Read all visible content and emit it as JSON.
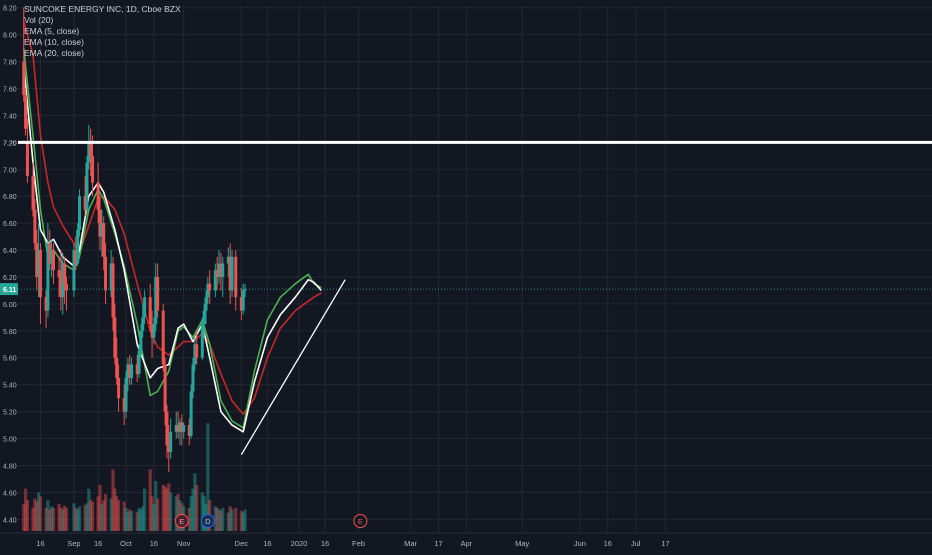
{
  "legend": {
    "title": "SUNCOKE ENERGY INC, 1D, Cboe BZX",
    "indicators": [
      "Vol (20)",
      "EMA (5, close)",
      "EMA (10, close)",
      "EMA (20, close)"
    ]
  },
  "colors": {
    "background": "#131722",
    "grid": "#232733",
    "up_candle": "#26a69a",
    "down_candle": "#ef5350",
    "ema5": "#ffffff",
    "ema10": "#4caf50",
    "ema20": "#c62828",
    "price_line": "#26a69a",
    "horizontal_line": "#ffffff",
    "trend_line": "#ffffff"
  },
  "chart_data": {
    "type": "candlestick",
    "symbol": "SUNCOKE ENERGY INC",
    "interval": "1D",
    "exchange": "Cboe BZX",
    "y_axis_ticks": [
      "8.20",
      "8.00",
      "7.80",
      "7.60",
      "7.40",
      "7.20",
      "7.00",
      "6.80",
      "6.60",
      "6.40",
      "6.20",
      "6.00",
      "5.80",
      "5.60",
      "5.40",
      "5.20",
      "5.00",
      "4.80",
      "4.60",
      "4.40"
    ],
    "ylim": [
      4.38,
      8.22
    ],
    "x_axis_ticks": [
      "16",
      "Sep",
      "16",
      "Oct",
      "16",
      "Nov",
      "Dec",
      "16",
      "2020",
      "16",
      "Feb",
      "Mar",
      "17",
      "Apr",
      "May",
      "Jun",
      "16",
      "Jul",
      "17"
    ],
    "current_price": "6.11",
    "horizontal_line_price": "7.20",
    "horizontal_line_label": "7.20",
    "trend_line": [
      {
        "date": "2019-12-02",
        "price": 4.88
      },
      {
        "date": "2020-01-15",
        "price": 6.18
      }
    ],
    "event_markers": [
      {
        "label": "E",
        "style": "earnings",
        "date": "2019-10-31"
      },
      {
        "label": "D",
        "style": "dividend",
        "date": "2019-11-14"
      },
      {
        "label": "E",
        "style": "earnings-upcoming",
        "date": "2020-02-04"
      }
    ],
    "ema5_approx": [
      [
        "2019-08-07",
        7.78
      ],
      [
        "2019-08-12",
        7.05
      ],
      [
        "2019-08-16",
        6.55
      ],
      [
        "2019-08-20",
        6.45
      ],
      [
        "2019-08-23",
        6.48
      ],
      [
        "2019-08-28",
        6.35
      ],
      [
        "2019-09-03",
        6.28
      ],
      [
        "2019-09-06",
        6.4
      ],
      [
        "2019-09-11",
        6.8
      ],
      [
        "2019-09-16",
        6.9
      ],
      [
        "2019-09-19",
        6.83
      ],
      [
        "2019-09-25",
        6.55
      ],
      [
        "2019-09-30",
        6.25
      ],
      [
        "2019-10-07",
        5.7
      ],
      [
        "2019-10-14",
        5.45
      ],
      [
        "2019-10-18",
        5.52
      ],
      [
        "2019-10-24",
        5.55
      ],
      [
        "2019-10-29",
        5.82
      ],
      [
        "2019-11-01",
        5.85
      ],
      [
        "2019-11-06",
        5.72
      ],
      [
        "2019-11-11",
        5.85
      ],
      [
        "2019-11-15",
        5.6
      ],
      [
        "2019-11-21",
        5.2
      ],
      [
        "2019-11-27",
        5.1
      ],
      [
        "2019-12-03",
        5.05
      ],
      [
        "2019-12-09",
        5.42
      ],
      [
        "2019-12-16",
        5.75
      ],
      [
        "2019-12-23",
        5.92
      ],
      [
        "2019-12-31",
        6.05
      ],
      [
        "2020-01-07",
        6.18
      ],
      [
        "2020-01-10",
        6.16
      ],
      [
        "2020-01-14",
        6.1
      ]
    ],
    "ema10_approx": [
      [
        "2019-08-07",
        7.9
      ],
      [
        "2019-08-12",
        7.25
      ],
      [
        "2019-08-16",
        6.7
      ],
      [
        "2019-08-20",
        6.35
      ],
      [
        "2019-08-23",
        6.4
      ],
      [
        "2019-08-28",
        6.3
      ],
      [
        "2019-09-03",
        6.25
      ],
      [
        "2019-09-06",
        6.35
      ],
      [
        "2019-09-11",
        6.7
      ],
      [
        "2019-09-16",
        6.85
      ],
      [
        "2019-09-19",
        6.78
      ],
      [
        "2019-09-25",
        6.52
      ],
      [
        "2019-09-30",
        6.28
      ],
      [
        "2019-10-07",
        5.85
      ],
      [
        "2019-10-14",
        5.32
      ],
      [
        "2019-10-18",
        5.35
      ],
      [
        "2019-10-24",
        5.5
      ],
      [
        "2019-10-29",
        5.8
      ],
      [
        "2019-11-01",
        5.83
      ],
      [
        "2019-11-06",
        5.75
      ],
      [
        "2019-11-11",
        5.88
      ],
      [
        "2019-11-15",
        5.7
      ],
      [
        "2019-11-21",
        5.28
      ],
      [
        "2019-11-27",
        5.13
      ],
      [
        "2019-12-03",
        5.08
      ],
      [
        "2019-12-09",
        5.5
      ],
      [
        "2019-12-16",
        5.88
      ],
      [
        "2019-12-23",
        6.05
      ],
      [
        "2019-12-31",
        6.15
      ],
      [
        "2020-01-07",
        6.22
      ],
      [
        "2020-01-10",
        6.15
      ],
      [
        "2020-01-14",
        6.12
      ]
    ],
    "ema20_approx": [
      [
        "2019-08-07",
        8.1
      ],
      [
        "2019-08-12",
        7.85
      ],
      [
        "2019-08-16",
        7.25
      ],
      [
        "2019-08-20",
        6.9
      ],
      [
        "2019-08-23",
        6.72
      ],
      [
        "2019-08-28",
        6.58
      ],
      [
        "2019-09-03",
        6.45
      ],
      [
        "2019-09-06",
        6.38
      ],
      [
        "2019-09-11",
        6.58
      ],
      [
        "2019-09-16",
        6.78
      ],
      [
        "2019-09-19",
        6.8
      ],
      [
        "2019-09-25",
        6.7
      ],
      [
        "2019-09-30",
        6.52
      ],
      [
        "2019-10-07",
        6.15
      ],
      [
        "2019-10-14",
        5.8
      ],
      [
        "2019-10-18",
        5.68
      ],
      [
        "2019-10-24",
        5.62
      ],
      [
        "2019-10-29",
        5.68
      ],
      [
        "2019-11-01",
        5.72
      ],
      [
        "2019-11-06",
        5.72
      ],
      [
        "2019-11-11",
        5.78
      ],
      [
        "2019-11-15",
        5.7
      ],
      [
        "2019-11-21",
        5.48
      ],
      [
        "2019-11-27",
        5.28
      ],
      [
        "2019-12-03",
        5.18
      ],
      [
        "2019-12-09",
        5.3
      ],
      [
        "2019-12-16",
        5.6
      ],
      [
        "2019-12-23",
        5.82
      ],
      [
        "2019-12-31",
        5.95
      ],
      [
        "2020-01-07",
        6.02
      ],
      [
        "2020-01-10",
        6.05
      ],
      [
        "2020-01-14",
        6.08
      ]
    ],
    "candles_approx": [
      {
        "o": 7.8,
        "h": 8.2,
        "c": 7.55,
        "l": 7.5
      },
      {
        "o": 7.55,
        "h": 7.6,
        "c": 7.3,
        "l": 7.25
      },
      {
        "o": 7.2,
        "h": 7.38,
        "c": 6.95,
        "l": 6.9
      },
      {
        "o": 6.95,
        "h": 7.05,
        "c": 6.7,
        "l": 6.65
      },
      {
        "o": 6.7,
        "h": 6.78,
        "c": 6.45,
        "l": 6.4
      },
      {
        "o": 6.45,
        "h": 6.55,
        "c": 6.2,
        "l": 6.1
      },
      {
        "o": 6.2,
        "h": 6.6,
        "c": 6.4,
        "l": 6.05
      },
      {
        "o": 6.4,
        "h": 6.45,
        "c": 6.05,
        "l": 5.85
      },
      {
        "o": 6.05,
        "h": 6.1,
        "c": 5.95,
        "l": 5.82
      },
      {
        "o": 5.95,
        "h": 6.6,
        "c": 6.45,
        "l": 5.9
      },
      {
        "o": 6.45,
        "h": 6.55,
        "c": 6.3,
        "l": 6.25
      },
      {
        "o": 6.3,
        "h": 6.48,
        "c": 6.4,
        "l": 6.2
      },
      {
        "o": 6.4,
        "h": 6.45,
        "c": 6.25,
        "l": 6.15
      },
      {
        "o": 6.25,
        "h": 6.35,
        "c": 6.2,
        "l": 6.05
      },
      {
        "o": 6.2,
        "h": 6.4,
        "c": 6.05,
        "l": 5.95
      },
      {
        "o": 6.05,
        "h": 6.38,
        "c": 6.3,
        "l": 5.92
      },
      {
        "o": 6.3,
        "h": 6.35,
        "c": 6.15,
        "l": 6.0
      },
      {
        "o": 6.15,
        "h": 6.2,
        "c": 6.1,
        "l": 5.95
      },
      {
        "o": 6.1,
        "h": 6.45,
        "c": 6.4,
        "l": 6.05
      },
      {
        "o": 6.4,
        "h": 6.5,
        "c": 6.3,
        "l": 6.25
      },
      {
        "o": 6.3,
        "h": 6.6,
        "c": 6.55,
        "l": 6.28
      },
      {
        "o": 6.55,
        "h": 6.85,
        "c": 6.8,
        "l": 6.5
      },
      {
        "o": 6.8,
        "h": 6.95,
        "c": 6.7,
        "l": 6.65
      },
      {
        "o": 6.7,
        "h": 7.1,
        "c": 7.05,
        "l": 6.68
      },
      {
        "o": 7.05,
        "h": 7.33,
        "c": 7.2,
        "l": 7.0
      },
      {
        "o": 7.2,
        "h": 7.3,
        "c": 7.1,
        "l": 6.95
      },
      {
        "o": 7.1,
        "h": 7.25,
        "c": 6.9,
        "l": 6.8
      },
      {
        "o": 6.9,
        "h": 7.05,
        "c": 6.7,
        "l": 6.6
      },
      {
        "o": 6.7,
        "h": 6.8,
        "c": 6.5,
        "l": 6.4
      },
      {
        "o": 6.5,
        "h": 6.7,
        "c": 6.6,
        "l": 6.35
      },
      {
        "o": 6.6,
        "h": 6.65,
        "c": 6.35,
        "l": 6.25
      },
      {
        "o": 6.35,
        "h": 6.45,
        "c": 6.1,
        "l": 6.0
      },
      {
        "o": 6.1,
        "h": 6.4,
        "c": 6.3,
        "l": 6.05
      },
      {
        "o": 6.3,
        "h": 6.35,
        "c": 5.9,
        "l": 5.8
      },
      {
        "o": 5.9,
        "h": 6.0,
        "c": 5.6,
        "l": 5.55
      },
      {
        "o": 5.6,
        "h": 5.75,
        "c": 5.45,
        "l": 5.4
      },
      {
        "o": 5.45,
        "h": 5.55,
        "c": 5.3,
        "l": 5.2
      },
      {
        "o": 5.3,
        "h": 5.4,
        "c": 5.2,
        "l": 5.1
      },
      {
        "o": 5.2,
        "h": 5.5,
        "c": 5.45,
        "l": 5.15
      },
      {
        "o": 5.45,
        "h": 5.6,
        "c": 5.55,
        "l": 5.35
      },
      {
        "o": 5.55,
        "h": 5.62,
        "c": 5.45,
        "l": 5.4
      },
      {
        "o": 5.45,
        "h": 5.6,
        "c": 5.55,
        "l": 5.4
      },
      {
        "o": 5.55,
        "h": 5.62,
        "c": 5.48,
        "l": 5.42
      },
      {
        "o": 5.48,
        "h": 5.7,
        "c": 5.65,
        "l": 5.45
      },
      {
        "o": 5.65,
        "h": 5.85,
        "c": 5.8,
        "l": 5.6
      },
      {
        "o": 5.8,
        "h": 6.0,
        "c": 5.9,
        "l": 5.75
      },
      {
        "o": 5.9,
        "h": 6.1,
        "c": 6.05,
        "l": 5.85
      },
      {
        "o": 6.05,
        "h": 6.15,
        "c": 5.85,
        "l": 5.8
      },
      {
        "o": 5.85,
        "h": 5.95,
        "c": 5.75,
        "l": 5.6
      },
      {
        "o": 5.75,
        "h": 5.9,
        "c": 5.85,
        "l": 5.7
      },
      {
        "o": 5.85,
        "h": 6.3,
        "c": 6.2,
        "l": 5.8
      },
      {
        "o": 6.2,
        "h": 6.3,
        "c": 5.95,
        "l": 5.9
      },
      {
        "o": 5.95,
        "h": 6.0,
        "c": 5.55,
        "l": 5.5
      },
      {
        "o": 5.55,
        "h": 5.6,
        "c": 5.2,
        "l": 5.1
      },
      {
        "o": 5.2,
        "h": 5.25,
        "c": 4.95,
        "l": 4.85
      },
      {
        "o": 4.95,
        "h": 5.1,
        "c": 4.9,
        "l": 4.75
      },
      {
        "o": 4.9,
        "h": 5.15,
        "c": 5.05,
        "l": 4.85
      },
      {
        "o": 5.05,
        "h": 5.2,
        "c": 5.1,
        "l": 5.0
      },
      {
        "o": 5.1,
        "h": 5.2,
        "c": 5.05,
        "l": 5.0
      },
      {
        "o": 5.05,
        "h": 5.15,
        "c": 5.12,
        "l": 4.95
      },
      {
        "o": 5.12,
        "h": 5.18,
        "c": 5.05,
        "l": 4.95
      },
      {
        "o": 5.05,
        "h": 5.12,
        "c": 5.1,
        "l": 5.0
      },
      {
        "o": 5.1,
        "h": 5.15,
        "c": 5.02,
        "l": 4.95
      },
      {
        "o": 5.02,
        "h": 5.4,
        "c": 5.35,
        "l": 5.0
      },
      {
        "o": 5.35,
        "h": 5.6,
        "c": 5.55,
        "l": 5.3
      },
      {
        "o": 5.55,
        "h": 5.75,
        "c": 5.7,
        "l": 5.5
      },
      {
        "o": 5.7,
        "h": 5.8,
        "c": 5.6,
        "l": 5.55
      },
      {
        "o": 5.6,
        "h": 5.9,
        "c": 5.85,
        "l": 5.58
      },
      {
        "o": 5.85,
        "h": 6.0,
        "c": 5.95,
        "l": 5.75
      },
      {
        "o": 5.95,
        "h": 6.1,
        "c": 6.05,
        "l": 5.85
      },
      {
        "o": 6.05,
        "h": 6.2,
        "c": 6.15,
        "l": 6.0
      },
      {
        "o": 6.15,
        "h": 6.25,
        "c": 6.1,
        "l": 6.0
      },
      {
        "o": 6.1,
        "h": 6.3,
        "c": 6.25,
        "l": 6.05
      },
      {
        "o": 6.25,
        "h": 6.35,
        "c": 6.2,
        "l": 6.1
      },
      {
        "o": 6.2,
        "h": 6.4,
        "c": 6.3,
        "l": 6.15
      },
      {
        "o": 6.3,
        "h": 6.38,
        "c": 6.2,
        "l": 6.1
      },
      {
        "o": 6.2,
        "h": 6.35,
        "c": 6.3,
        "l": 6.05
      },
      {
        "o": 6.3,
        "h": 6.42,
        "c": 6.35,
        "l": 6.2
      },
      {
        "o": 6.35,
        "h": 6.45,
        "c": 6.1,
        "l": 6.0
      },
      {
        "o": 6.1,
        "h": 6.4,
        "c": 6.35,
        "l": 6.05
      },
      {
        "o": 6.35,
        "h": 6.4,
        "c": 6.05,
        "l": 5.95
      },
      {
        "o": 6.05,
        "h": 6.12,
        "c": 5.95,
        "l": 5.88
      },
      {
        "o": 5.95,
        "h": 6.15,
        "c": 6.1,
        "l": 5.92
      },
      {
        "o": 6.1,
        "h": 6.15,
        "c": 6.11,
        "l": 6.05
      }
    ],
    "volumes_approx": [
      0.35,
      0.55,
      0.4,
      0.3,
      0.42,
      0.38,
      0.5,
      0.45,
      0.3,
      0.4,
      0.28,
      0.32,
      0.3,
      0.35,
      0.3,
      0.28,
      0.33,
      0.3,
      0.36,
      0.3,
      0.28,
      0.32,
      0.34,
      0.36,
      0.55,
      0.4,
      0.38,
      0.45,
      0.6,
      0.35,
      0.4,
      0.48,
      0.42,
      0.8,
      0.55,
      0.45,
      0.4,
      0.38,
      0.3,
      0.25,
      0.28,
      0.26,
      0.25,
      0.3,
      0.28,
      0.32,
      0.55,
      0.8,
      0.45,
      0.35,
      0.65,
      0.42,
      0.6,
      0.58,
      0.55,
      0.62,
      0.5,
      0.45,
      0.48,
      0.4,
      0.36,
      0.32,
      0.3,
      0.45,
      0.55,
      0.75,
      0.6,
      0.5,
      0.45,
      0.35,
      1.4,
      0.4,
      0.32,
      0.3,
      0.28,
      0.26,
      0.3,
      0.24,
      0.32,
      0.28,
      0.3,
      0.26,
      0.24,
      0.28,
      0.22
    ]
  }
}
